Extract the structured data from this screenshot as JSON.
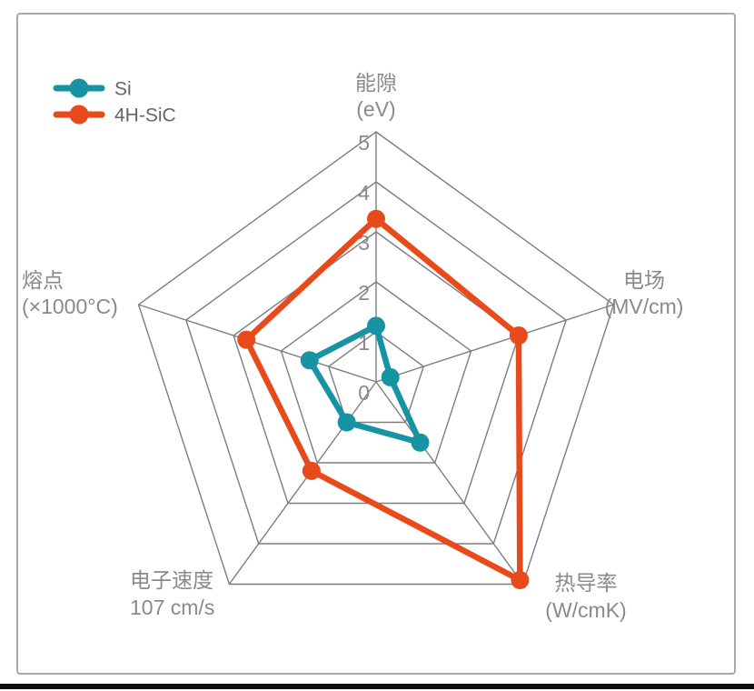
{
  "colors": {
    "si": "#1794A4",
    "sic": "#E84A1B",
    "grid": "#7E7E7E",
    "tick_text": "#8A8A8A",
    "axis_text": "#8A8A8A",
    "legend_text": "#666666",
    "card_border": "#A9A9A9",
    "bottom_bar": "#0D0D0D",
    "background": "#FFFFFF"
  },
  "legend": {
    "items": [
      {
        "label": "Si",
        "color_key": "si"
      },
      {
        "label": "4H-SiC",
        "color_key": "sic"
      }
    ]
  },
  "chart_data": {
    "type": "radar",
    "title": "",
    "scale": {
      "min": 0,
      "max": 5,
      "ticks": [
        0,
        1,
        2,
        3,
        4,
        5
      ]
    },
    "grid": true,
    "legend_position": "top-left",
    "axes": [
      {
        "id": "bandgap",
        "label_lines": [
          "能隙",
          "(eV)"
        ]
      },
      {
        "id": "electric-field",
        "label_lines": [
          "电场",
          "(MV/cm)"
        ]
      },
      {
        "id": "thermal-conductivity",
        "label_lines": [
          "热导率",
          "(W/cmK)"
        ]
      },
      {
        "id": "electron-velocity",
        "label_lines": [
          "电子速度",
          "107 cm/s"
        ]
      },
      {
        "id": "melting-point",
        "label_lines": [
          "熔点",
          "(×1000°C)"
        ]
      }
    ],
    "series": [
      {
        "name": "Si",
        "color_key": "si",
        "values": [
          1.12,
          0.3,
          1.5,
          1.0,
          1.4
        ]
      },
      {
        "name": "4H-SiC",
        "color_key": "sic",
        "values": [
          3.26,
          3.0,
          4.9,
          2.2,
          2.73
        ]
      }
    ]
  }
}
